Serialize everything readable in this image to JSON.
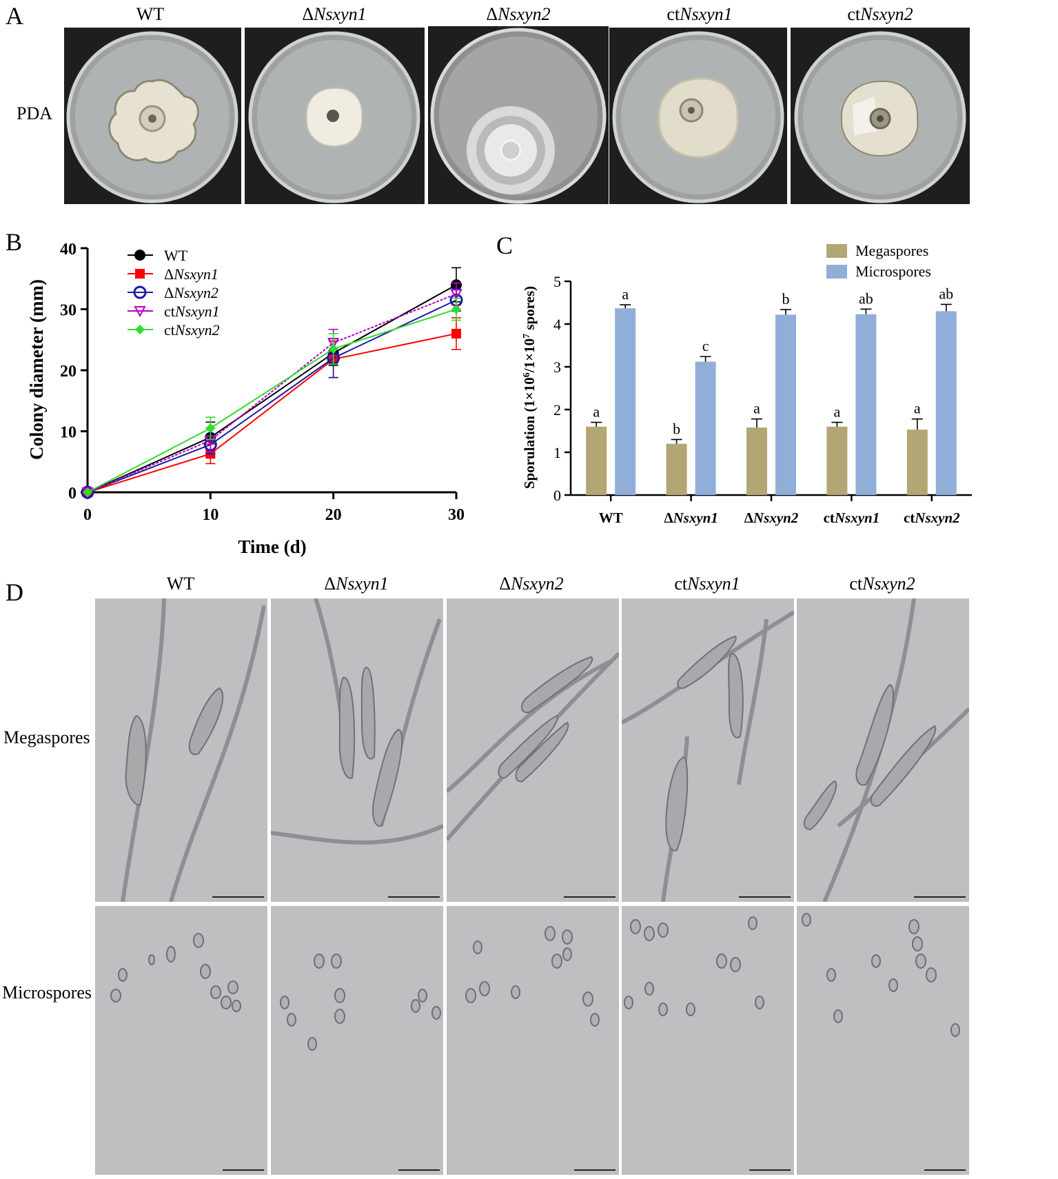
{
  "panels": {
    "A": "A",
    "B": "B",
    "C": "C",
    "D": "D"
  },
  "strains": [
    "WT",
    "ΔNsxyn1",
    "ΔNsxyn2",
    "ctNsxyn1",
    "ctNsxyn2"
  ],
  "strain_labels": [
    {
      "pre": "",
      "it": "",
      "plain": "WT"
    },
    {
      "pre": "Δ",
      "it": "Nsxyn1",
      "plain": ""
    },
    {
      "pre": "Δ",
      "it": "Nsxyn2",
      "plain": ""
    },
    {
      "pre": "ct",
      "it": "Nsxyn1",
      "plain": ""
    },
    {
      "pre": "ct",
      "it": "Nsxyn2",
      "plain": ""
    }
  ],
  "panelA": {
    "row_label": "PDA"
  },
  "panelD": {
    "row_labels": [
      "Megaspores",
      "Microspores"
    ]
  },
  "colors": {
    "WT": "#000000",
    "ΔNsxyn1": "#ff0000",
    "ΔNsxyn2": "#1a1aa6",
    "ctNsxyn1": "#b400c8",
    "ctNsxyn2": "#2edc2e",
    "megaspores": "#b2a774",
    "microspores": "#8fafd8",
    "plate_bg": "#1e1e1e",
    "agar": "#aeb1b1",
    "colony": "#e4dfcf"
  },
  "chart_data": [
    {
      "type": "line",
      "panel": "B",
      "xlabel": "Time (d)",
      "ylabel": "Colony diameter (mm)",
      "x": [
        0,
        10,
        20,
        30
      ],
      "xlim": [
        0,
        30
      ],
      "ylim": [
        0,
        40
      ],
      "xticks": [
        "0",
        "10",
        "20",
        "30"
      ],
      "yticks": [
        "0",
        "10",
        "20",
        "30",
        "40"
      ],
      "legend_position": "top-left",
      "series": [
        {
          "name": "WT",
          "marker": "filled-circle",
          "values": [
            0,
            9.0,
            22.8,
            34.0
          ],
          "error": [
            0,
            2.5,
            2.0,
            2.8
          ]
        },
        {
          "name": "ΔNsxyn1",
          "marker": "filled-square",
          "values": [
            0,
            6.3,
            21.8,
            26.0
          ],
          "error": [
            0,
            1.6,
            3.0,
            2.6
          ]
        },
        {
          "name": "ΔNsxyn2",
          "marker": "open-circle",
          "values": [
            0,
            7.8,
            22.0,
            31.5
          ],
          "error": [
            0,
            1.5,
            3.2,
            1.8
          ]
        },
        {
          "name": "ctNsxyn1",
          "marker": "triangle-down",
          "values": [
            0,
            8.5,
            24.5,
            32.5
          ],
          "error": [
            0,
            2.0,
            2.2,
            1.8
          ]
        },
        {
          "name": "ctNsxyn2",
          "marker": "diamond",
          "values": [
            0,
            10.5,
            23.5,
            30.0
          ],
          "error": [
            0,
            1.8,
            2.5,
            1.8
          ]
        }
      ]
    },
    {
      "type": "bar",
      "panel": "C",
      "ylabel": "Sporulation (1×10⁶/1×10⁷ spores)",
      "categories": [
        "WT",
        "ΔNsxyn1",
        "ΔNsxyn2",
        "ctNsxyn1",
        "ctNsxyn2"
      ],
      "ylim": [
        0,
        5
      ],
      "yticks": [
        "0",
        "1",
        "2",
        "3",
        "4",
        "5"
      ],
      "legend_position": "top-right",
      "series": [
        {
          "name": "Megaspores",
          "values": [
            1.6,
            1.2,
            1.58,
            1.6,
            1.53
          ],
          "error": [
            0.1,
            0.1,
            0.2,
            0.1,
            0.25
          ],
          "letters": [
            "a",
            "b",
            "a",
            "a",
            "a"
          ]
        },
        {
          "name": "Microspores",
          "values": [
            4.37,
            3.12,
            4.22,
            4.23,
            4.3
          ],
          "error": [
            0.08,
            0.12,
            0.12,
            0.12,
            0.16
          ],
          "letters": [
            "a",
            "c",
            "b",
            "ab",
            "ab"
          ]
        }
      ]
    }
  ]
}
